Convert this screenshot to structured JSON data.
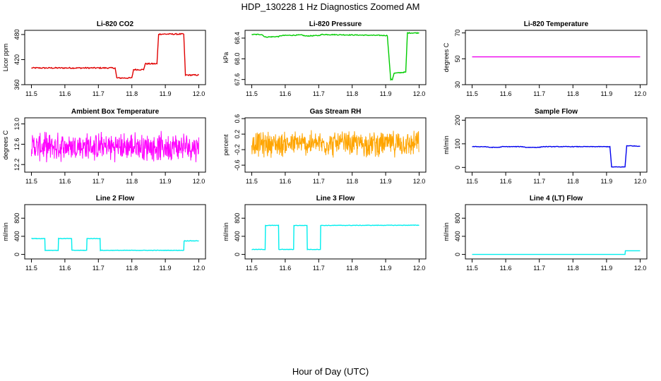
{
  "figure": {
    "title": "HDP_130228  1 Hz Diagnostics Zoomed AM",
    "xlabel": "Hour of Day (UTC)"
  },
  "chart_data": [
    {
      "type": "line",
      "title": "Li-820 CO2",
      "ylabel": "Licor ppm",
      "xlim": [
        11.5,
        12.0
      ],
      "ylim": [
        360,
        490
      ],
      "xticks": [
        "11.5",
        "11.6",
        "11.7",
        "11.8",
        "11.9",
        "12.0"
      ],
      "yticks": [
        "360",
        "420",
        "480"
      ],
      "color": "#e00000",
      "series": [
        {
          "x": [
            11.5,
            11.6,
            11.65,
            11.75,
            11.755,
            11.8,
            11.805,
            11.835,
            11.84,
            11.875,
            11.88,
            11.955,
            11.96,
            12.0
          ],
          "y": [
            400,
            400,
            400,
            400,
            376,
            376,
            396,
            396,
            410,
            410,
            481,
            481,
            383,
            383
          ],
          "noise": 1.5
        }
      ]
    },
    {
      "type": "line",
      "title": "Li-820 Pressure",
      "ylabel": "kPa",
      "xlim": [
        11.5,
        12.0
      ],
      "ylim": [
        67.5,
        68.55
      ],
      "xticks": [
        "11.5",
        "11.6",
        "11.7",
        "11.8",
        "11.9",
        "12.0"
      ],
      "yticks": [
        "67.6",
        "68.0",
        "68.4"
      ],
      "color": "#00cc00",
      "series": [
        {
          "x": [
            11.5,
            11.53,
            11.54,
            11.58,
            11.59,
            11.65,
            11.66,
            11.7,
            11.71,
            11.905,
            11.915,
            11.92,
            11.925,
            11.955,
            11.96,
            11.965,
            12.0
          ],
          "y": [
            68.47,
            68.47,
            68.42,
            68.43,
            68.45,
            68.46,
            68.44,
            68.45,
            68.47,
            68.45,
            67.6,
            67.6,
            67.72,
            67.74,
            67.74,
            68.5,
            68.5
          ],
          "noise": 0.008
        }
      ]
    },
    {
      "type": "line",
      "title": "Li-820 Temperature",
      "ylabel": "degrees C",
      "xlim": [
        11.5,
        12.0
      ],
      "ylim": [
        30,
        72
      ],
      "xticks": [
        "11.5",
        "11.6",
        "11.7",
        "11.8",
        "11.9",
        "12.0"
      ],
      "yticks": [
        "30",
        "50",
        "70"
      ],
      "color": "#ee00ee",
      "series": [
        {
          "x": [
            11.5,
            12.0
          ],
          "y": [
            51.5,
            51.5
          ],
          "noise": 0
        }
      ]
    },
    {
      "type": "line",
      "title": "Ambient Box Temperature",
      "ylabel": "degrees C",
      "xlim": [
        11.5,
        12.0
      ],
      "ylim": [
        12.05,
        13.12
      ],
      "xticks": [
        "11.5",
        "11.6",
        "11.7",
        "11.8",
        "11.9",
        "12.0"
      ],
      "yticks": [
        "12.2",
        "12.6",
        "13.0"
      ],
      "color": "#ff00ff",
      "series": [
        {
          "x": [
            11.5,
            12.0
          ],
          "y": [
            12.55,
            12.55
          ],
          "noise": 0.32,
          "dense": true
        }
      ]
    },
    {
      "type": "line",
      "title": "Gas Stream RH",
      "ylabel": "percent",
      "xlim": [
        11.5,
        12.0
      ],
      "ylim": [
        -0.78,
        0.62
      ],
      "xticks": [
        "11.5",
        "11.6",
        "11.7",
        "11.8",
        "11.9",
        "12.0"
      ],
      "yticks": [
        "-0.6",
        "-0.2",
        "0.2",
        "0.6"
      ],
      "color": "#ffa500",
      "series": [
        {
          "x": [
            11.5,
            12.0
          ],
          "y": [
            -0.05,
            -0.05
          ],
          "noise": 0.38,
          "dense": true
        }
      ]
    },
    {
      "type": "line",
      "title": "Sample Flow",
      "ylabel": "ml/min",
      "xlim": [
        11.5,
        12.0
      ],
      "ylim": [
        -20,
        210
      ],
      "xticks": [
        "11.5",
        "11.6",
        "11.7",
        "11.8",
        "11.9",
        "12.0"
      ],
      "yticks": [
        "0",
        "100",
        "200"
      ],
      "color": "#0000ee",
      "series": [
        {
          "x": [
            11.5,
            11.54,
            11.55,
            11.58,
            11.59,
            11.65,
            11.66,
            11.7,
            11.71,
            11.91,
            11.915,
            11.955,
            11.96,
            12.0
          ],
          "y": [
            88,
            88,
            85,
            85,
            88,
            88,
            85,
            85,
            88,
            88,
            2,
            2,
            92,
            90
          ],
          "noise": 1.2
        }
      ]
    },
    {
      "type": "line",
      "title": "Line 2 Flow",
      "ylabel": "ml/min",
      "xlim": [
        11.5,
        12.0
      ],
      "ylim": [
        -100,
        1100
      ],
      "xticks": [
        "11.5",
        "11.6",
        "11.7",
        "11.8",
        "11.9",
        "12.0"
      ],
      "yticks": [
        "0",
        "400",
        "800"
      ],
      "color": "#00eeee",
      "series": [
        {
          "x": [
            11.5,
            11.54,
            11.541,
            11.58,
            11.581,
            11.62,
            11.621,
            11.665,
            11.666,
            11.705,
            11.706,
            11.955,
            11.956,
            12.0
          ],
          "y": [
            350,
            350,
            90,
            90,
            350,
            350,
            90,
            90,
            350,
            350,
            90,
            90,
            300,
            300
          ],
          "noise": 5
        }
      ]
    },
    {
      "type": "line",
      "title": "Line 3 Flow",
      "ylabel": "ml/min",
      "xlim": [
        11.5,
        12.0
      ],
      "ylim": [
        -100,
        1100
      ],
      "xticks": [
        "11.5",
        "11.6",
        "11.7",
        "11.8",
        "11.9",
        "12.0"
      ],
      "yticks": [
        "0",
        "400",
        "800"
      ],
      "color": "#00eeee",
      "series": [
        {
          "x": [
            11.5,
            11.54,
            11.541,
            11.58,
            11.581,
            11.625,
            11.626,
            11.665,
            11.666,
            11.705,
            11.706,
            12.0
          ],
          "y": [
            110,
            110,
            640,
            640,
            110,
            110,
            640,
            640,
            110,
            110,
            640,
            645
          ],
          "noise": 5
        }
      ]
    },
    {
      "type": "line",
      "title": "Line 4 (LT) Flow",
      "ylabel": "ml/min",
      "xlim": [
        11.5,
        12.0
      ],
      "ylim": [
        -100,
        1100
      ],
      "xticks": [
        "11.5",
        "11.6",
        "11.7",
        "11.8",
        "11.9",
        "12.0"
      ],
      "yticks": [
        "0",
        "400",
        "800"
      ],
      "color": "#00eeee",
      "series": [
        {
          "x": [
            11.5,
            11.955,
            11.956,
            12.0
          ],
          "y": [
            0,
            0,
            80,
            80
          ],
          "noise": 0
        }
      ]
    }
  ]
}
